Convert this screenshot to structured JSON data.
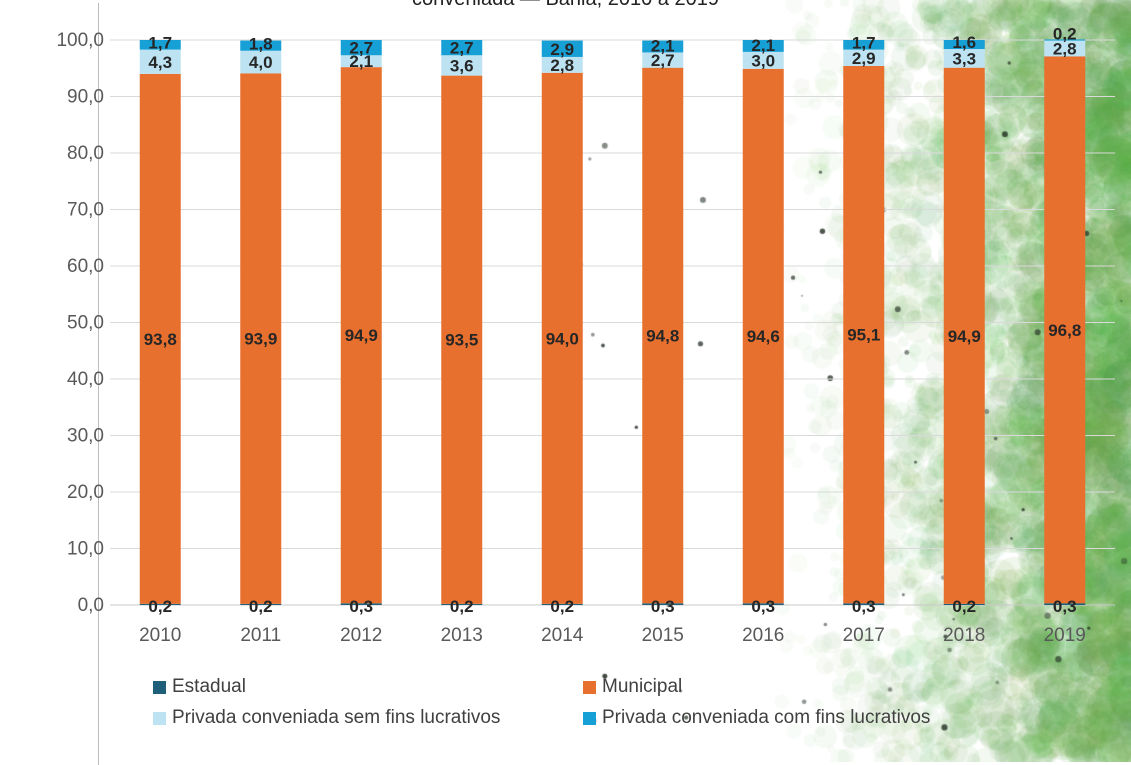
{
  "title_partial": "conveniada — Bahia, 2010 a 2019",
  "chart_data": {
    "type": "bar",
    "stacked": true,
    "categories": [
      "2010",
      "2011",
      "2012",
      "2013",
      "2014",
      "2015",
      "2016",
      "2017",
      "2018",
      "2019"
    ],
    "series": [
      {
        "name": "Estadual",
        "color": "#1f5f7a",
        "values": [
          0.2,
          0.2,
          0.3,
          0.2,
          0.2,
          0.3,
          0.3,
          0.3,
          0.2,
          0.3
        ],
        "labels": [
          "0,2",
          "0,2",
          "0,3",
          "0,2",
          "0,2",
          "0,3",
          "0,3",
          "0,3",
          "0,2",
          "0,3"
        ]
      },
      {
        "name": "Municipal",
        "color": "#e8702e",
        "values": [
          93.8,
          93.9,
          94.9,
          93.5,
          94.0,
          94.8,
          94.6,
          95.1,
          94.9,
          96.8
        ],
        "labels": [
          "93,8",
          "93,9",
          "94,9",
          "93,5",
          "94,0",
          "94,8",
          "94,6",
          "95,1",
          "94,9",
          "96,8"
        ]
      },
      {
        "name": "Privada conveniada sem fins lucrativos",
        "color": "#bde3f2",
        "values": [
          4.3,
          4.0,
          2.1,
          3.6,
          2.8,
          2.7,
          3.0,
          2.9,
          3.3,
          2.8
        ],
        "labels": [
          "4,3",
          "4,0",
          "2,1",
          "3,6",
          "2,8",
          "2,7",
          "3,0",
          "2,9",
          "3,3",
          "2,8"
        ]
      },
      {
        "name": "Privada conveniada com fins lucrativos",
        "color": "#17a0d6",
        "values": [
          1.7,
          1.8,
          2.7,
          2.7,
          2.9,
          2.1,
          2.1,
          1.7,
          1.6,
          0.2
        ],
        "labels": [
          "1,7",
          "1,8",
          "2,7",
          "2,7",
          "2,9",
          "2,1",
          "2,1",
          "1,7",
          "1,6",
          "0,2"
        ]
      }
    ],
    "ylim": [
      0,
      100
    ],
    "yticks": [
      "0,0",
      "10,0",
      "20,0",
      "30,0",
      "40,0",
      "50,0",
      "60,0",
      "70,0",
      "80,0",
      "90,0",
      "100,0"
    ],
    "grid": true,
    "legend": "bottom"
  }
}
